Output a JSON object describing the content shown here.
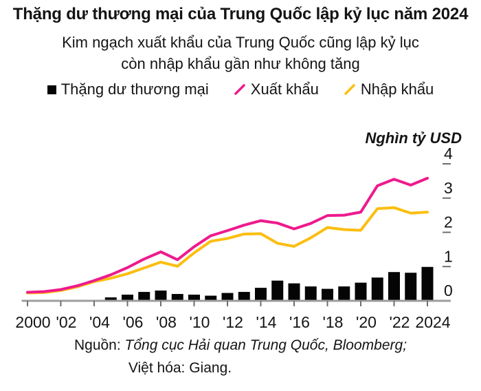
{
  "header": {
    "title": "Thặng dư thương mại của Trung Quốc lập kỷ lục năm 2024",
    "subtitle_line1": "Kim ngạch xuất khẩu của Trung Quốc cũng lập kỷ lục",
    "subtitle_line2": "còn nhập khẩu gần như không tăng"
  },
  "footer": {
    "source_prefix": "Nguồn:",
    "source_names": "Tổng cục Hải quan Trung Quốc, Bloomberg;",
    "credit": "Việt hóa: Giang."
  },
  "colors": {
    "surplus": "#050505",
    "exports": "#EE1A8D",
    "imports": "#FBBE11",
    "axis": "#9d9d9d",
    "tick": "#6e6e6e",
    "text": "#141414"
  },
  "chart_data": {
    "type": "bar+line",
    "title": "Thặng dư thương mại của Trung Quốc lập kỷ lục năm 2024",
    "subtitle": "Kim ngạch xuất khẩu của Trung Quốc cũng lập kỷ lục còn nhập khẩu gần như không tăng",
    "ylabel": "Nghìn tỷ USD",
    "xlabel": "",
    "ylim": [
      0,
      4.3
    ],
    "grid": false,
    "legend_position": "top",
    "x": [
      2000,
      2001,
      2002,
      2003,
      2004,
      2005,
      2006,
      2007,
      2008,
      2009,
      2010,
      2011,
      2012,
      2013,
      2014,
      2015,
      2016,
      2017,
      2018,
      2019,
      2020,
      2021,
      2022,
      2023,
      2024
    ],
    "x_tick_labels": [
      "2000",
      "'02",
      "'04",
      "'06",
      "'08",
      "'10",
      "'12",
      "'14",
      "'16",
      "'18",
      "'20",
      "'22",
      "2024"
    ],
    "y_ticks": [
      0,
      1,
      2,
      3,
      4
    ],
    "series": [
      {
        "name": "Thặng dư thương mại",
        "type": "bar",
        "color": "#050505",
        "values": [
          0.02,
          0.02,
          0.03,
          0.03,
          0.03,
          0.1,
          0.18,
          0.26,
          0.3,
          0.2,
          0.18,
          0.15,
          0.23,
          0.26,
          0.38,
          0.59,
          0.51,
          0.42,
          0.35,
          0.42,
          0.53,
          0.68,
          0.84,
          0.82,
          0.99
        ]
      },
      {
        "name": "Xuất khẩu",
        "type": "line",
        "color": "#EE1A8D",
        "values": [
          0.25,
          0.27,
          0.33,
          0.44,
          0.59,
          0.76,
          0.97,
          1.22,
          1.43,
          1.2,
          1.58,
          1.9,
          2.05,
          2.21,
          2.34,
          2.27,
          2.1,
          2.26,
          2.49,
          2.5,
          2.59,
          3.36,
          3.55,
          3.38,
          3.58
        ]
      },
      {
        "name": "Nhập khẩu",
        "type": "line",
        "color": "#FBBE11",
        "values": [
          0.23,
          0.24,
          0.3,
          0.41,
          0.56,
          0.66,
          0.79,
          0.96,
          1.13,
          1.01,
          1.4,
          1.74,
          1.82,
          1.95,
          1.96,
          1.68,
          1.59,
          1.84,
          2.14,
          2.08,
          2.06,
          2.69,
          2.72,
          2.56,
          2.59
        ]
      }
    ]
  }
}
